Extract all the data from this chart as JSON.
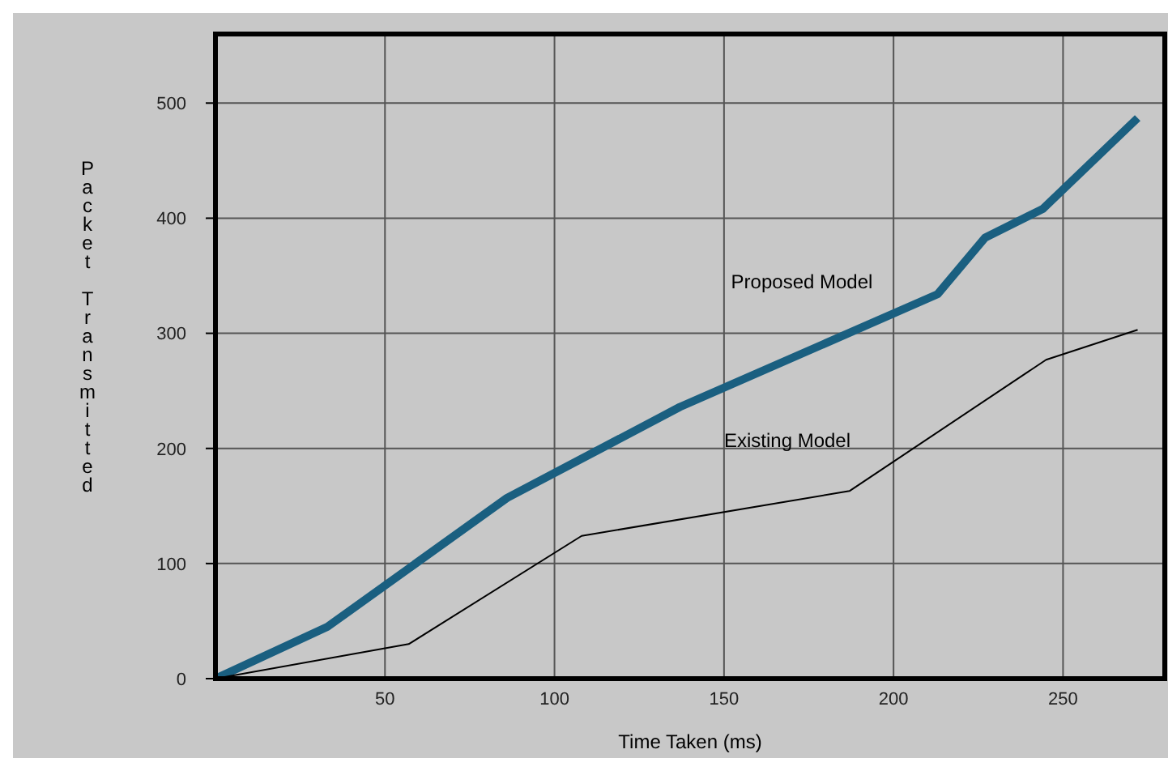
{
  "chart_data": {
    "type": "line",
    "xlabel": "Time Taken (ms)",
    "ylabel": "Packet Transmitted",
    "xlim": [
      0,
      280
    ],
    "xticks": [
      50,
      100,
      150,
      200,
      250
    ],
    "ylim": [
      0,
      560
    ],
    "yticks": [
      0,
      100,
      200,
      300,
      400,
      500
    ],
    "grid": true,
    "marker": "none",
    "line_style": "solid",
    "series": [
      {
        "name": "Proposed Model",
        "color": "#1a5f80",
        "x": [
          0,
          33,
          86,
          137,
          213,
          227,
          244,
          272
        ],
        "values": [
          0,
          45,
          157,
          236,
          334,
          383,
          408,
          487
        ]
      },
      {
        "name": "Existing Model",
        "color": "#000000",
        "x": [
          0,
          57,
          108,
          187,
          245,
          272
        ],
        "values": [
          0,
          30,
          124,
          163,
          277,
          303
        ]
      }
    ]
  }
}
